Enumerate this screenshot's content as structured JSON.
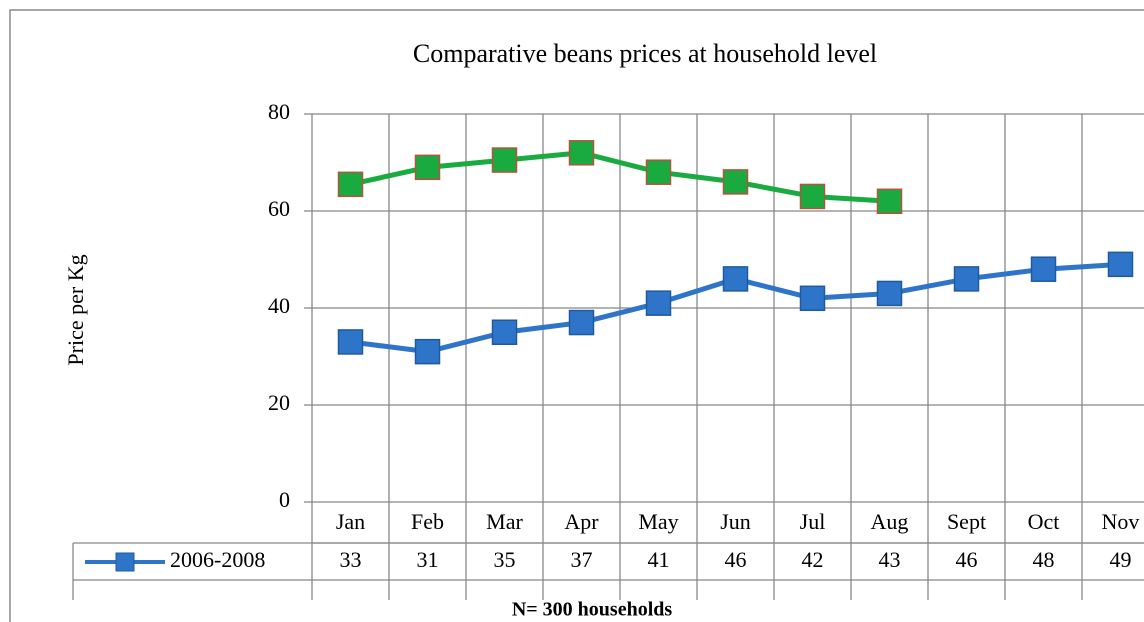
{
  "chart_data": {
    "type": "line",
    "title": "Comparative beans prices  at household level",
    "y_label": "Price per Kg",
    "footnote": "N= 300 households",
    "categories": [
      "Jan",
      "Feb",
      "Mar",
      "Apr",
      "May",
      "Jun",
      "Jul",
      "Aug",
      "Sept",
      "Oct",
      "Nov"
    ],
    "series": [
      {
        "name": "2006-2008",
        "color": "#2e75c9",
        "values": [
          33,
          31,
          35,
          37,
          41,
          46,
          42,
          43,
          46,
          48,
          49
        ]
      },
      {
        "color": "#1aab40",
        "values": [
          65.5,
          69,
          70.5,
          72,
          68,
          66,
          63,
          62,
          null,
          null,
          null
        ]
      }
    ],
    "ylim": [
      0,
      80
    ],
    "yticks": [
      0,
      20,
      40,
      60,
      80
    ],
    "grid": true
  }
}
